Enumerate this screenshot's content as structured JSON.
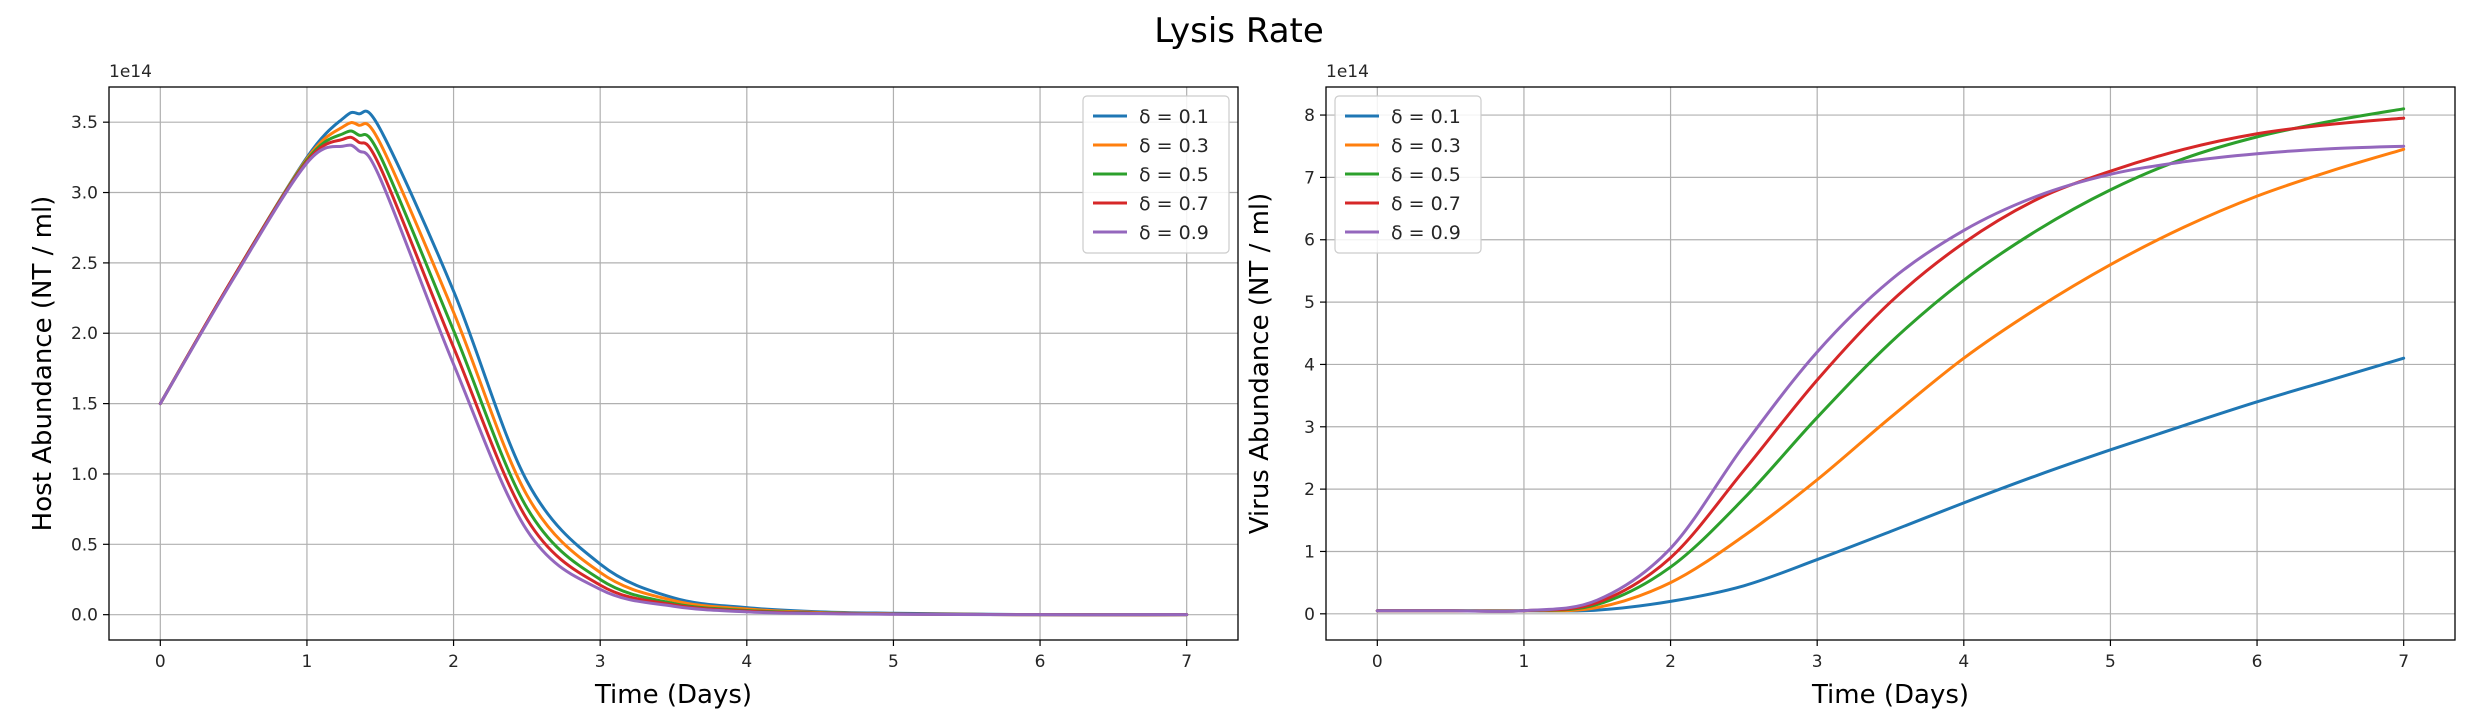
{
  "figure": {
    "title": "Lysis Rate"
  },
  "colors": {
    "palette": [
      "#1f77b4",
      "#ff7f0e",
      "#2ca02c",
      "#d62728",
      "#9467bd"
    ],
    "grid": "#b0b0b0",
    "axes": "#000000"
  },
  "chart_data": [
    {
      "type": "line",
      "xlabel": "Time (Days)",
      "ylabel": "Host Abundance (NT / ml)",
      "offset_label": "1e14",
      "xlim": [
        -0.35,
        7.35
      ],
      "ylim": [
        -0.18,
        3.75
      ],
      "xticks": [
        0,
        1,
        2,
        3,
        4,
        5,
        6,
        7
      ],
      "xtick_labels": [
        "0",
        "1",
        "2",
        "3",
        "4",
        "5",
        "6",
        "7"
      ],
      "yticks": [
        0.0,
        0.5,
        1.0,
        1.5,
        2.0,
        2.5,
        3.0,
        3.5
      ],
      "ytick_labels": [
        "0.0",
        "0.5",
        "1.0",
        "1.5",
        "2.0",
        "2.5",
        "3.0",
        "3.5"
      ],
      "grid": true,
      "legend_position": "top-right",
      "x": [
        0,
        0.5,
        1.0,
        1.25,
        1.35,
        1.5,
        2.0,
        2.5,
        3.0,
        3.5,
        4.0,
        4.5,
        5.0,
        6.0,
        7.0
      ],
      "series": [
        {
          "name": "δ = 0.1",
          "values": [
            1.5,
            2.4,
            3.25,
            3.53,
            3.56,
            3.45,
            2.3,
            0.95,
            0.36,
            0.12,
            0.05,
            0.02,
            0.01,
            0.0,
            0.0
          ]
        },
        {
          "name": "δ = 0.3",
          "values": [
            1.5,
            2.4,
            3.24,
            3.47,
            3.48,
            3.35,
            2.15,
            0.85,
            0.3,
            0.1,
            0.04,
            0.015,
            0.006,
            0.0,
            0.0
          ]
        },
        {
          "name": "δ = 0.5",
          "values": [
            1.5,
            2.4,
            3.23,
            3.42,
            3.41,
            3.26,
            2.02,
            0.76,
            0.25,
            0.08,
            0.03,
            0.012,
            0.005,
            0.0,
            0.0
          ]
        },
        {
          "name": "δ = 0.7",
          "values": [
            1.5,
            2.4,
            3.22,
            3.38,
            3.36,
            3.18,
            1.9,
            0.68,
            0.21,
            0.07,
            0.025,
            0.01,
            0.004,
            0.0,
            0.0
          ]
        },
        {
          "name": "δ = 0.9",
          "values": [
            1.5,
            2.39,
            3.21,
            3.33,
            3.3,
            3.1,
            1.78,
            0.6,
            0.18,
            0.06,
            0.02,
            0.008,
            0.003,
            0.0,
            0.0
          ]
        }
      ]
    },
    {
      "type": "line",
      "xlabel": "Time (Days)",
      "ylabel": "Virus Abundance (NT / ml)",
      "offset_label": "1e14",
      "xlim": [
        -0.35,
        7.35
      ],
      "ylim": [
        -0.42,
        8.45
      ],
      "xticks": [
        0,
        1,
        2,
        3,
        4,
        5,
        6,
        7
      ],
      "xtick_labels": [
        "0",
        "1",
        "2",
        "3",
        "4",
        "5",
        "6",
        "7"
      ],
      "yticks": [
        0,
        1,
        2,
        3,
        4,
        5,
        6,
        7,
        8
      ],
      "ytick_labels": [
        "0",
        "1",
        "2",
        "3",
        "4",
        "5",
        "6",
        "7",
        "8"
      ],
      "grid": true,
      "legend_position": "top-left",
      "x": [
        0,
        0.5,
        1.0,
        1.5,
        2.0,
        2.5,
        3.0,
        3.5,
        4.0,
        4.5,
        5.0,
        5.5,
        6.0,
        6.5,
        7.0
      ],
      "series": [
        {
          "name": "δ = 0.1",
          "values": [
            0.05,
            0.05,
            0.05,
            0.06,
            0.2,
            0.45,
            0.87,
            1.32,
            1.78,
            2.22,
            2.63,
            3.02,
            3.4,
            3.75,
            4.1
          ]
        },
        {
          "name": "δ = 0.3",
          "values": [
            0.05,
            0.05,
            0.05,
            0.1,
            0.5,
            1.25,
            2.15,
            3.15,
            4.1,
            4.9,
            5.6,
            6.2,
            6.7,
            7.1,
            7.45
          ]
        },
        {
          "name": "δ = 0.5",
          "values": [
            0.05,
            0.05,
            0.05,
            0.15,
            0.75,
            1.85,
            3.15,
            4.35,
            5.35,
            6.15,
            6.8,
            7.3,
            7.65,
            7.9,
            8.1
          ]
        },
        {
          "name": "δ = 0.7",
          "values": [
            0.05,
            0.05,
            0.05,
            0.18,
            0.9,
            2.3,
            3.75,
            5.0,
            5.95,
            6.65,
            7.1,
            7.45,
            7.7,
            7.85,
            7.95
          ]
        },
        {
          "name": "δ = 0.9",
          "values": [
            0.05,
            0.05,
            0.05,
            0.22,
            1.05,
            2.7,
            4.2,
            5.35,
            6.15,
            6.7,
            7.05,
            7.25,
            7.38,
            7.46,
            7.5
          ]
        }
      ]
    }
  ]
}
